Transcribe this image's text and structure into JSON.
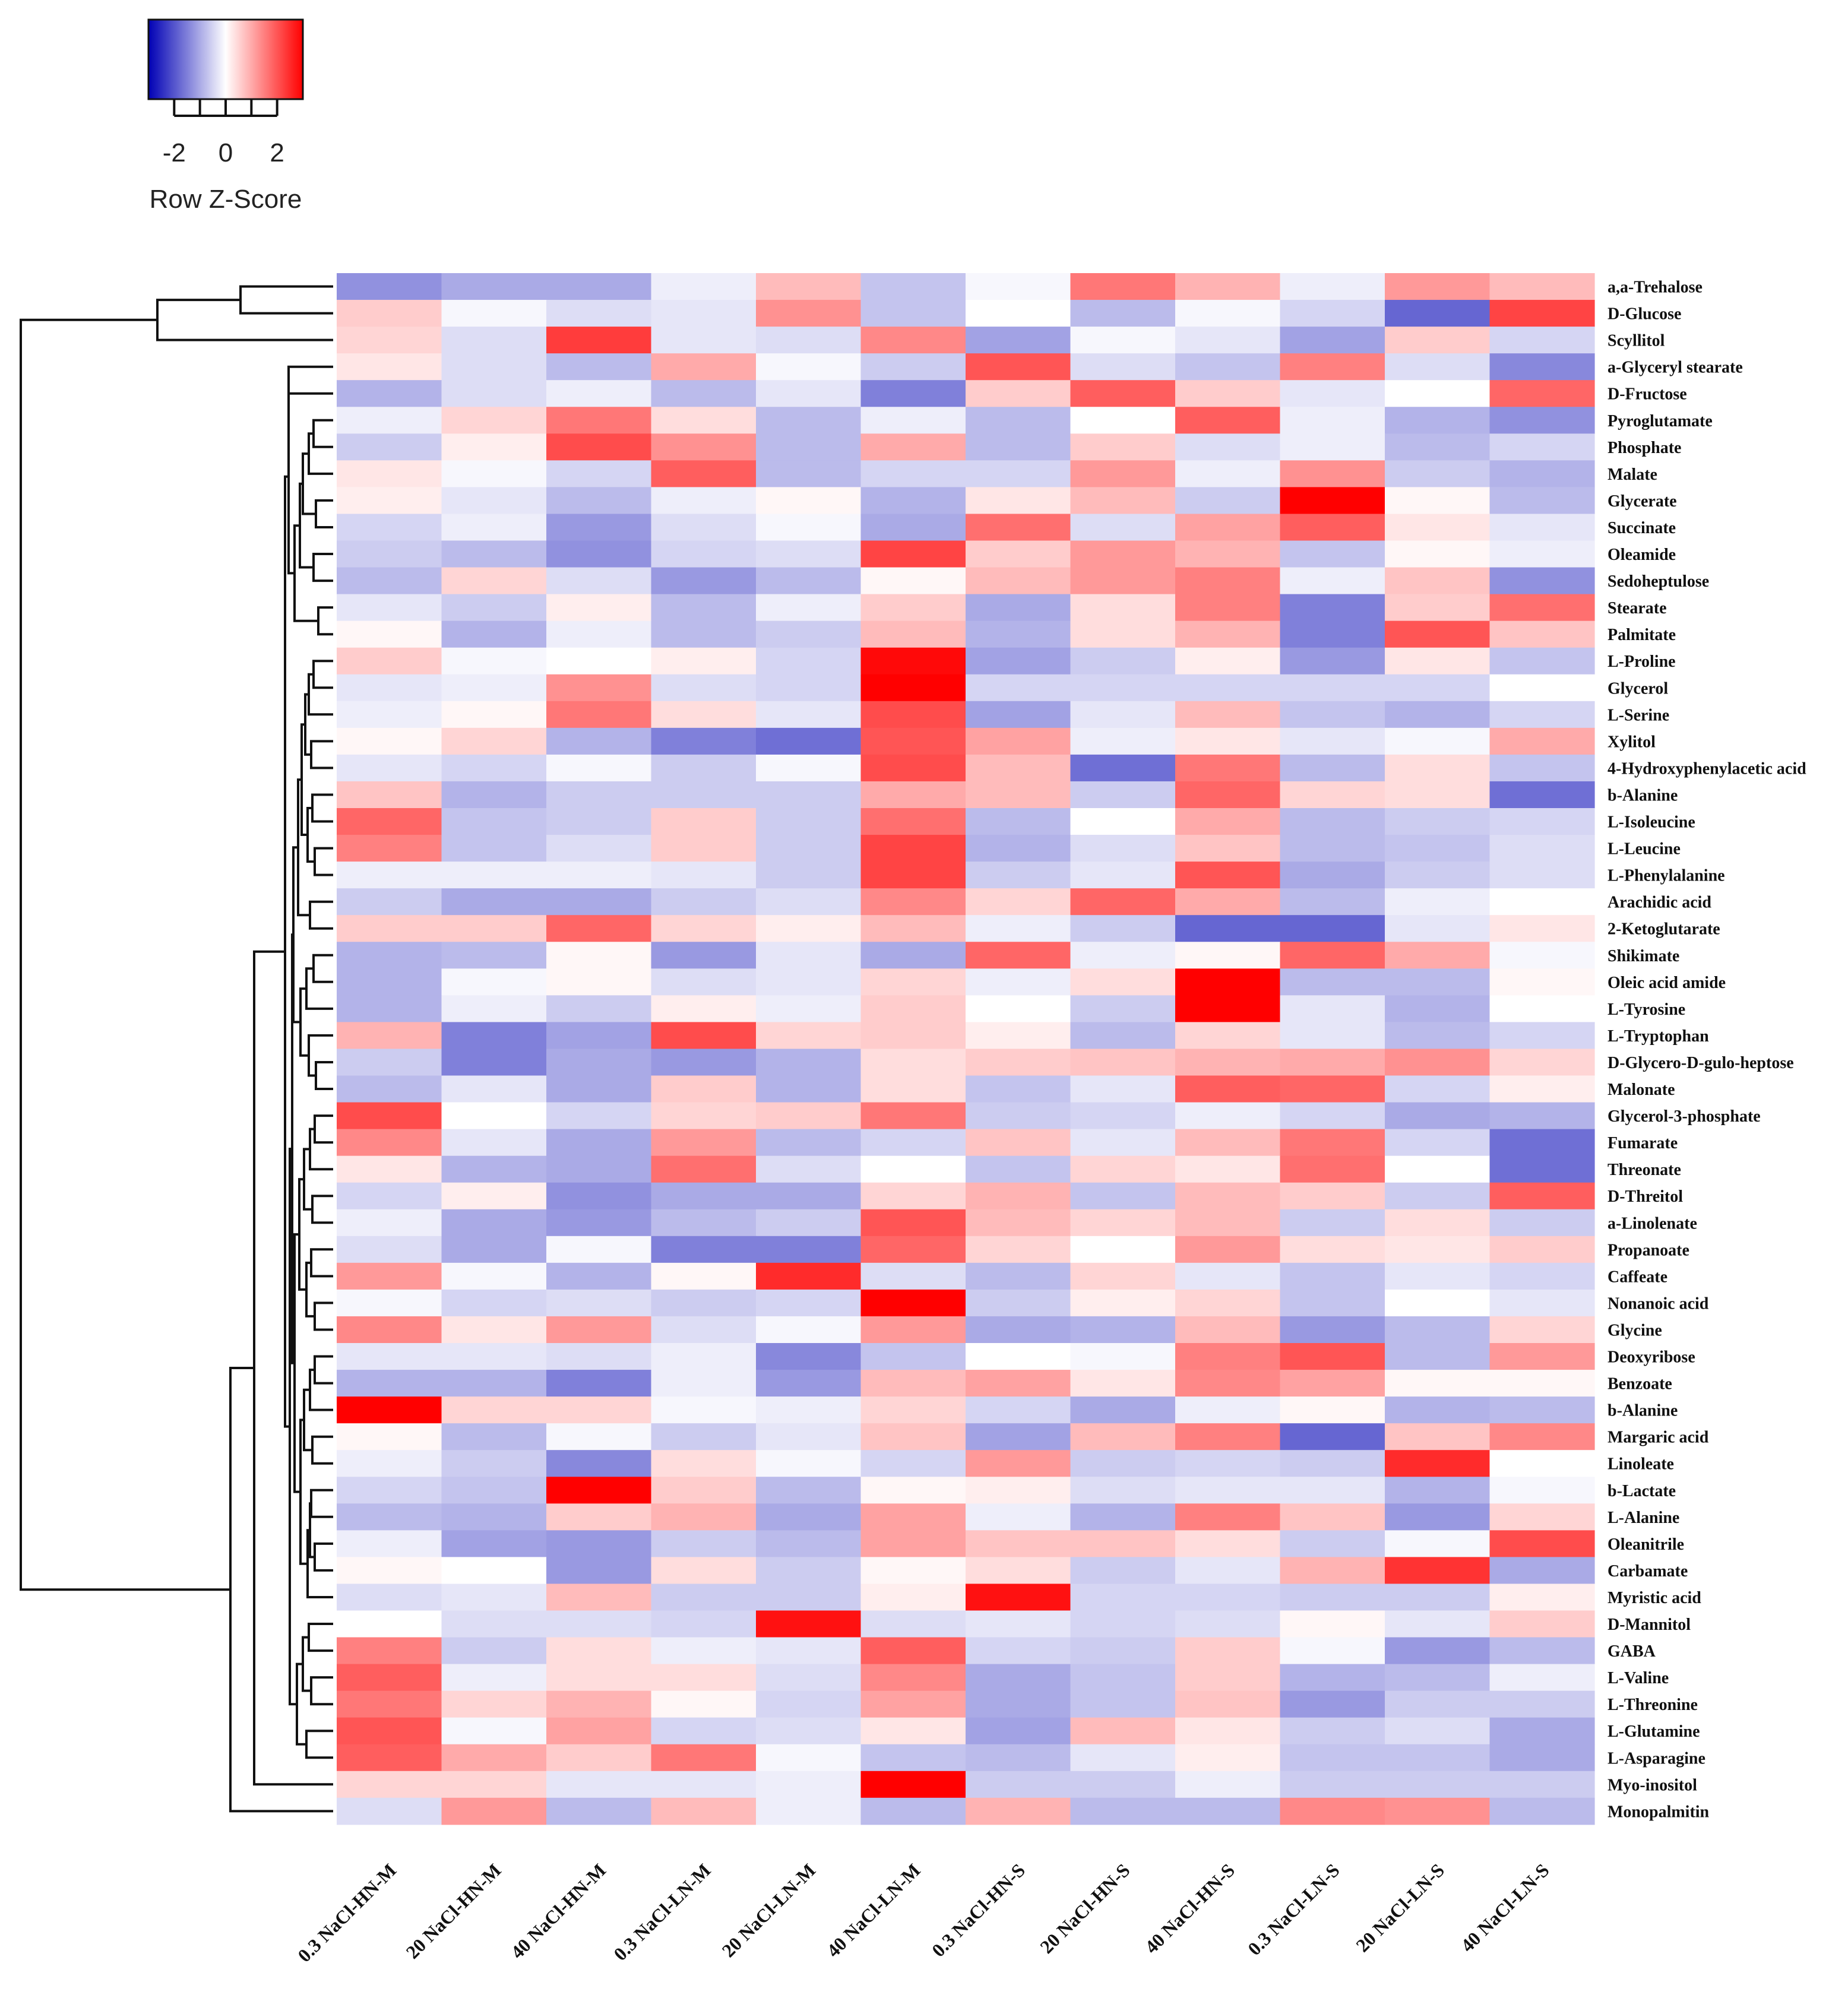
{
  "chart_data": {
    "type": "heatmap",
    "title": "",
    "color_key": {
      "title": "Row Z-Score",
      "ticks": [
        -2,
        0,
        2
      ],
      "range": [
        -3,
        3
      ],
      "low_color": "#0000B4",
      "mid_color": "#FFFFFF",
      "high_color": "#FF0000"
    },
    "columns": [
      "0.3 NaCl-HN-M",
      "20 NaCl-HN-M",
      "40 NaCl-HN-M",
      "0.3 NaCl-LN-M",
      "20 NaCl-LN-M",
      "40 NaCl-LN-M",
      "0.3 NaCl-HN-S",
      "20 NaCl-HN-S",
      "40 NaCl-HN-S",
      "0.3 NaCl-LN-S",
      "20 NaCl-LN-S",
      "40 NaCl-LN-S"
    ],
    "rows": [
      {
        "name": "a,a-Trehalose",
        "values": [
          -1.3,
          -1.0,
          -1.0,
          -0.2,
          0.8,
          -0.7,
          -0.1,
          1.6,
          0.9,
          -0.2,
          1.2,
          0.8
        ]
      },
      {
        "name": "D-Glucose",
        "values": [
          0.6,
          -0.1,
          -0.4,
          -0.3,
          1.3,
          -0.7,
          0.0,
          -0.8,
          -0.1,
          -0.5,
          -1.8,
          2.2
        ]
      },
      {
        "name": "Scyllitol",
        "values": [
          0.5,
          -0.4,
          2.3,
          -0.3,
          -0.4,
          1.4,
          -1.1,
          -0.1,
          -0.3,
          -1.1,
          0.6,
          -0.5
        ]
      },
      {
        "name": "a-Glyceryl stearate",
        "values": [
          0.3,
          -0.4,
          -0.8,
          1.0,
          -0.1,
          -0.6,
          2.0,
          -0.4,
          -0.7,
          1.5,
          -0.4,
          -1.4
        ]
      },
      {
        "name": "D-Fructose",
        "values": [
          -0.9,
          -0.4,
          -0.2,
          -0.8,
          -0.3,
          -1.5,
          0.6,
          1.9,
          0.6,
          -0.3,
          0.0,
          1.8
        ]
      },
      {
        "name": "Pyroglutamate",
        "values": [
          -0.2,
          0.5,
          1.6,
          0.4,
          -0.8,
          -0.2,
          -0.8,
          0.0,
          1.9,
          -0.2,
          -0.9,
          -1.3
        ]
      },
      {
        "name": "Phosphate",
        "values": [
          -0.6,
          0.2,
          2.1,
          1.3,
          -0.8,
          1.0,
          -0.8,
          0.6,
          -0.4,
          -0.2,
          -0.8,
          -0.5
        ]
      },
      {
        "name": "Malate",
        "values": [
          0.3,
          -0.1,
          -0.5,
          1.9,
          -0.8,
          -0.5,
          -0.5,
          1.2,
          -0.2,
          1.3,
          -0.6,
          -0.9
        ]
      },
      {
        "name": "Glycerate",
        "values": [
          0.2,
          -0.3,
          -0.8,
          -0.2,
          0.1,
          -0.9,
          0.3,
          0.8,
          -0.6,
          3.0,
          0.1,
          -0.8
        ]
      },
      {
        "name": "Succinate",
        "values": [
          -0.5,
          -0.2,
          -1.2,
          -0.4,
          -0.1,
          -1.0,
          1.7,
          -0.4,
          1.1,
          1.9,
          0.3,
          -0.3
        ]
      },
      {
        "name": "Oleamide",
        "values": [
          -0.6,
          -0.8,
          -1.3,
          -0.5,
          -0.4,
          2.2,
          0.6,
          1.2,
          0.9,
          -0.7,
          0.1,
          -0.2
        ]
      },
      {
        "name": "Sedoheptulose",
        "values": [
          -0.8,
          0.5,
          -0.4,
          -1.2,
          -0.8,
          0.1,
          0.8,
          1.2,
          1.5,
          -0.2,
          0.7,
          -1.3
        ]
      },
      {
        "name": "Stearate",
        "values": [
          -0.3,
          -0.6,
          0.2,
          -0.8,
          -0.2,
          0.6,
          -1.0,
          0.4,
          1.5,
          -1.5,
          0.6,
          1.7
        ]
      },
      {
        "name": "Palmitate",
        "values": [
          0.1,
          -0.9,
          -0.2,
          -0.8,
          -0.6,
          0.8,
          -0.9,
          0.4,
          0.9,
          -1.5,
          2.0,
          0.7
        ]
      },
      {
        "name": "L-Proline",
        "values": [
          0.6,
          -0.1,
          0.0,
          0.2,
          -0.5,
          2.9,
          -1.1,
          -0.6,
          0.2,
          -1.2,
          0.3,
          -0.7
        ]
      },
      {
        "name": "Glycerol",
        "values": [
          -0.3,
          -0.2,
          1.3,
          -0.4,
          -0.5,
          3.0,
          -0.5,
          -0.5,
          -0.5,
          -0.5,
          -0.5,
          0.0
        ]
      },
      {
        "name": "L-Serine",
        "values": [
          -0.2,
          0.1,
          1.6,
          0.4,
          -0.3,
          2.1,
          -1.1,
          -0.3,
          0.8,
          -0.7,
          -0.9,
          -0.5
        ]
      },
      {
        "name": "Xylitol",
        "values": [
          0.1,
          0.5,
          -0.9,
          -1.5,
          -1.7,
          2.0,
          1.1,
          -0.2,
          0.3,
          -0.3,
          -0.1,
          1.0
        ]
      },
      {
        "name": "4-Hydroxyphenylacetic acid",
        "values": [
          -0.3,
          -0.5,
          -0.1,
          -0.6,
          -0.1,
          2.1,
          0.8,
          -1.7,
          1.6,
          -0.8,
          0.4,
          -0.7
        ]
      },
      {
        "name": "b-Alanine",
        "values": [
          0.7,
          -0.9,
          -0.6,
          -0.6,
          -0.6,
          1.0,
          0.8,
          -0.6,
          1.8,
          0.5,
          0.4,
          -1.7
        ]
      },
      {
        "name": "L-Isoleucine",
        "values": [
          1.8,
          -0.7,
          -0.6,
          0.6,
          -0.6,
          1.7,
          -0.8,
          0.0,
          1.0,
          -0.8,
          -0.6,
          -0.5
        ]
      },
      {
        "name": "L-Leucine",
        "values": [
          1.5,
          -0.7,
          -0.4,
          0.6,
          -0.6,
          2.2,
          -0.9,
          -0.4,
          0.7,
          -0.8,
          -0.7,
          -0.4
        ]
      },
      {
        "name": "L-Phenylalanine",
        "values": [
          -0.2,
          -0.2,
          -0.2,
          -0.3,
          -0.6,
          2.2,
          -0.6,
          -0.3,
          2.0,
          -1.0,
          -0.6,
          -0.4
        ]
      },
      {
        "name": "Arachidic acid",
        "values": [
          -0.6,
          -1.0,
          -1.0,
          -0.6,
          -0.4,
          1.4,
          0.5,
          1.8,
          1.0,
          -0.8,
          -0.2,
          0.0
        ]
      },
      {
        "name": "2-Ketoglutarate",
        "values": [
          0.6,
          0.6,
          1.8,
          0.5,
          0.2,
          0.8,
          -0.2,
          -0.6,
          -1.8,
          -1.8,
          -0.3,
          0.3
        ]
      },
      {
        "name": "Shikimate",
        "values": [
          -0.9,
          -0.8,
          0.1,
          -1.2,
          -0.3,
          -1.0,
          1.8,
          -0.2,
          0.1,
          1.8,
          1.0,
          -0.1
        ]
      },
      {
        "name": "Oleic acid amide",
        "values": [
          -0.9,
          -0.1,
          0.1,
          -0.4,
          -0.3,
          0.5,
          -0.2,
          0.4,
          3.0,
          -0.8,
          -0.8,
          0.1
        ]
      },
      {
        "name": "L-Tyrosine",
        "values": [
          -0.9,
          -0.2,
          -0.6,
          0.2,
          -0.2,
          0.6,
          0.0,
          -0.6,
          3.0,
          -0.3,
          -0.9,
          0.0
        ]
      },
      {
        "name": "L-Tryptophan",
        "values": [
          0.9,
          -1.5,
          -1.1,
          2.1,
          0.5,
          0.6,
          0.2,
          -0.8,
          0.5,
          -0.3,
          -0.8,
          -0.5
        ]
      },
      {
        "name": "D-Glycero-D-gulo-heptose",
        "values": [
          -0.6,
          -1.5,
          -1.0,
          -1.2,
          -0.9,
          0.4,
          0.6,
          0.7,
          0.9,
          1.0,
          1.3,
          0.5
        ]
      },
      {
        "name": "Malonate",
        "values": [
          -0.8,
          -0.3,
          -1.0,
          0.6,
          -0.9,
          0.4,
          -0.7,
          -0.3,
          1.9,
          1.8,
          -0.5,
          0.2
        ]
      },
      {
        "name": "Glycerol-3-phosphate",
        "values": [
          2.1,
          0.0,
          -0.5,
          0.5,
          0.6,
          1.6,
          -0.6,
          -0.5,
          -0.2,
          -0.5,
          -1.0,
          -0.9
        ]
      },
      {
        "name": "Fumarate",
        "values": [
          1.4,
          -0.3,
          -1.0,
          1.2,
          -0.8,
          -0.5,
          0.7,
          -0.3,
          0.8,
          1.6,
          -0.5,
          -1.7
        ]
      },
      {
        "name": "Threonate",
        "values": [
          0.3,
          -0.9,
          -1.0,
          1.7,
          -0.4,
          0.0,
          -0.7,
          0.5,
          0.3,
          1.7,
          0.0,
          -1.7
        ]
      },
      {
        "name": "D-Threitol",
        "values": [
          -0.5,
          0.2,
          -1.3,
          -1.0,
          -1.0,
          0.5,
          0.9,
          -0.7,
          0.8,
          0.6,
          -0.6,
          1.9
        ]
      },
      {
        "name": "a-Linolenate",
        "values": [
          -0.2,
          -1.0,
          -1.2,
          -0.8,
          -0.6,
          2.0,
          0.8,
          0.5,
          0.8,
          -0.6,
          0.4,
          -0.6
        ]
      },
      {
        "name": "Propanoate",
        "values": [
          -0.4,
          -1.0,
          -0.1,
          -1.5,
          -1.5,
          1.8,
          0.5,
          0.0,
          1.2,
          0.4,
          0.3,
          0.6
        ]
      },
      {
        "name": "Caffeate",
        "values": [
          1.2,
          -0.1,
          -0.9,
          0.1,
          2.5,
          -0.4,
          -0.8,
          0.5,
          -0.3,
          -0.7,
          -0.3,
          -0.5
        ]
      },
      {
        "name": "Nonanoic acid",
        "values": [
          -0.1,
          -0.5,
          -0.4,
          -0.6,
          -0.5,
          3.0,
          -0.6,
          0.2,
          0.5,
          -0.7,
          0.0,
          -0.3
        ]
      },
      {
        "name": "Glycine",
        "values": [
          1.4,
          0.3,
          1.2,
          -0.4,
          -0.1,
          1.2,
          -1.0,
          -0.9,
          0.8,
          -1.2,
          -0.8,
          0.5
        ]
      },
      {
        "name": "Deoxyribose",
        "values": [
          -0.3,
          -0.3,
          -0.4,
          -0.2,
          -1.4,
          -0.7,
          0.0,
          -0.1,
          1.5,
          2.0,
          -0.8,
          1.2
        ]
      },
      {
        "name": "Benzoate",
        "values": [
          -0.9,
          -0.9,
          -1.5,
          -0.2,
          -1.2,
          0.8,
          1.1,
          0.3,
          1.4,
          1.1,
          0.1,
          0.1
        ]
      },
      {
        "name": "b-Alanine",
        "values": [
          3.0,
          0.5,
          0.5,
          -0.1,
          -0.2,
          0.5,
          -0.5,
          -1.0,
          -0.2,
          0.1,
          -0.9,
          -0.8
        ]
      },
      {
        "name": "Margaric acid",
        "values": [
          0.1,
          -0.8,
          -0.1,
          -0.6,
          -0.3,
          0.7,
          -1.1,
          0.8,
          1.5,
          -1.8,
          0.7,
          1.4
        ]
      },
      {
        "name": "Linoleate",
        "values": [
          -0.2,
          -0.6,
          -1.4,
          0.4,
          -0.1,
          -0.5,
          1.2,
          -0.6,
          -0.5,
          -0.6,
          2.5,
          0.0
        ]
      },
      {
        "name": "b-Lactate",
        "values": [
          -0.5,
          -0.7,
          3.0,
          0.6,
          -0.8,
          0.1,
          0.2,
          -0.4,
          -0.3,
          -0.3,
          -0.9,
          -0.1
        ]
      },
      {
        "name": "L-Alanine",
        "values": [
          -0.8,
          -0.9,
          0.6,
          0.9,
          -1.0,
          1.1,
          -0.2,
          -0.9,
          1.5,
          0.7,
          -1.2,
          0.5
        ]
      },
      {
        "name": "Oleanitrile",
        "values": [
          -0.2,
          -1.1,
          -1.2,
          -0.6,
          -0.8,
          1.1,
          0.7,
          0.7,
          0.4,
          -0.6,
          -0.1,
          2.1
        ]
      },
      {
        "name": "Carbamate",
        "values": [
          0.1,
          0.0,
          -1.2,
          0.4,
          -0.6,
          0.1,
          0.4,
          -0.6,
          -0.3,
          0.9,
          2.4,
          -1.0
        ]
      },
      {
        "name": "Myristic acid",
        "values": [
          -0.4,
          -0.3,
          0.8,
          -0.6,
          -0.6,
          0.2,
          2.8,
          -0.5,
          -0.5,
          -0.6,
          -0.6,
          0.2
        ]
      },
      {
        "name": "D-Mannitol",
        "values": [
          0.0,
          -0.4,
          -0.4,
          -0.5,
          2.8,
          -0.4,
          -0.3,
          -0.5,
          -0.4,
          0.1,
          -0.3,
          0.6
        ]
      },
      {
        "name": "GABA",
        "values": [
          1.5,
          -0.6,
          0.4,
          -0.2,
          -0.3,
          1.9,
          -0.5,
          -0.6,
          0.6,
          -0.1,
          -1.2,
          -0.8
        ]
      },
      {
        "name": "L-Valine",
        "values": [
          1.9,
          -0.2,
          0.4,
          0.4,
          -0.4,
          1.4,
          -1.0,
          -0.7,
          0.6,
          -0.9,
          -0.8,
          -0.2
        ]
      },
      {
        "name": "L-Threonine",
        "values": [
          1.6,
          0.5,
          0.9,
          0.1,
          -0.5,
          1.1,
          -1.0,
          -0.7,
          0.7,
          -1.2,
          -0.6,
          -0.6
        ]
      },
      {
        "name": "L-Glutamine",
        "values": [
          2.0,
          -0.1,
          1.1,
          -0.5,
          -0.4,
          0.3,
          -1.1,
          0.8,
          0.3,
          -0.6,
          -0.4,
          -1.0
        ]
      },
      {
        "name": "L-Asparagine",
        "values": [
          1.9,
          1.0,
          0.6,
          1.6,
          -0.1,
          -0.7,
          -0.8,
          -0.3,
          0.2,
          -0.7,
          -0.7,
          -1.0
        ]
      },
      {
        "name": "Myo-inositol",
        "values": [
          0.5,
          0.5,
          -0.3,
          -0.3,
          -0.2,
          3.0,
          -0.6,
          -0.6,
          -0.2,
          -0.6,
          -0.6,
          -0.6
        ]
      },
      {
        "name": "Monopalmitin",
        "values": [
          -0.4,
          1.2,
          -0.8,
          0.8,
          -0.2,
          -0.8,
          0.9,
          -0.8,
          -0.8,
          1.4,
          1.3,
          -0.8
        ]
      }
    ]
  }
}
